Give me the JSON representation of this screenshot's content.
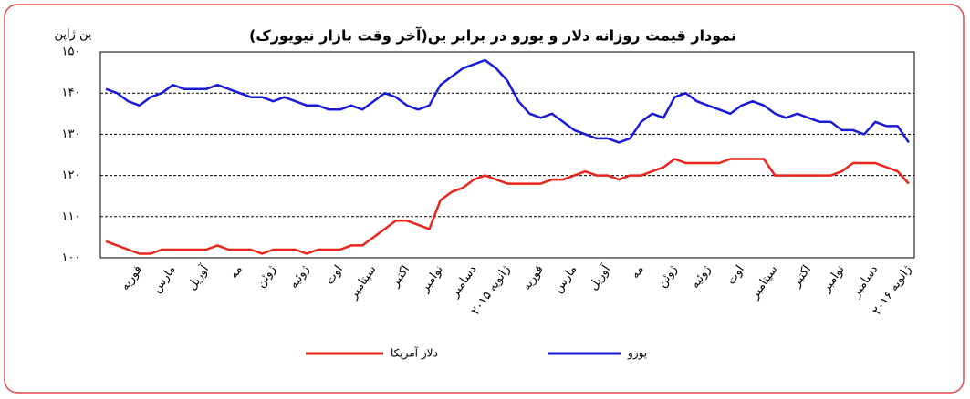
{
  "chart_data": {
    "type": "line",
    "title": "نمودار قیمت روزانه دلار و یورو در برابر ین(آخر وقت بازار نیویورک)",
    "y_label": "ین ژاپن",
    "categories": [
      null,
      null,
      null,
      "فوریه",
      null,
      null,
      "مارس",
      null,
      null,
      "آوریل",
      null,
      null,
      "مه",
      null,
      null,
      "ژوئن",
      null,
      null,
      "ژوئیه",
      null,
      null,
      "اوت",
      null,
      null,
      "سپتامبر",
      null,
      null,
      "اکتبر",
      null,
      null,
      "نوامبر",
      null,
      null,
      "دسامبر",
      null,
      null,
      "ژانویه ۲۰۱۵",
      null,
      null,
      "فوریه",
      null,
      null,
      "مارس",
      null,
      null,
      "آوریل",
      null,
      null,
      "مه",
      null,
      null,
      "ژوئن",
      null,
      null,
      "ژوئیه",
      null,
      null,
      "اوت",
      null,
      null,
      "سپتامبر",
      null,
      null,
      "اکتبر",
      null,
      null,
      "نوامبر",
      null,
      null,
      "دسامبر",
      null,
      null,
      "ژانویه ۲۰۱۶"
    ],
    "series": [
      {
        "name": "یورو",
        "color": "#1a1ad6",
        "values": [
          141,
          140,
          138,
          137,
          139,
          140,
          142,
          141,
          141,
          141,
          142,
          141,
          140,
          139,
          139,
          138,
          139,
          138,
          137,
          137,
          136,
          136,
          137,
          136,
          138,
          140,
          139,
          137,
          136,
          137,
          142,
          144,
          146,
          147,
          148,
          146,
          143,
          138,
          135,
          134,
          135,
          133,
          131,
          130,
          129,
          129,
          128,
          129,
          133,
          135,
          134,
          139,
          140,
          138,
          137,
          136,
          135,
          137,
          138,
          137,
          135,
          134,
          135,
          134,
          133,
          133,
          131,
          131,
          130,
          133,
          132,
          132,
          128
        ]
      },
      {
        "name": "دلار آمریکا",
        "color": "#e8251c",
        "values": [
          104,
          103,
          102,
          101,
          101,
          102,
          102,
          102,
          102,
          102,
          103,
          102,
          102,
          102,
          101,
          102,
          102,
          102,
          101,
          102,
          102,
          102,
          103,
          103,
          105,
          107,
          109,
          109,
          108,
          107,
          114,
          116,
          117,
          119,
          120,
          119,
          118,
          118,
          118,
          118,
          119,
          119,
          120,
          121,
          120,
          120,
          119,
          120,
          120,
          121,
          122,
          124,
          123,
          123,
          123,
          123,
          124,
          124,
          124,
          124,
          120,
          120,
          120,
          120,
          120,
          120,
          121,
          123,
          123,
          123,
          122,
          121,
          118
        ]
      }
    ],
    "ylim": [
      100,
      150
    ],
    "yticks": [
      {
        "value": 100,
        "label": "۱۰۰"
      },
      {
        "value": 110,
        "label": "۱۱۰"
      },
      {
        "value": 120,
        "label": "۱۲۰"
      },
      {
        "value": 130,
        "label": "۱۳۰"
      },
      {
        "value": 140,
        "label": "۱۴۰"
      },
      {
        "value": 150,
        "label": "۱۵۰"
      }
    ],
    "grid": true,
    "legend": "bottom"
  }
}
